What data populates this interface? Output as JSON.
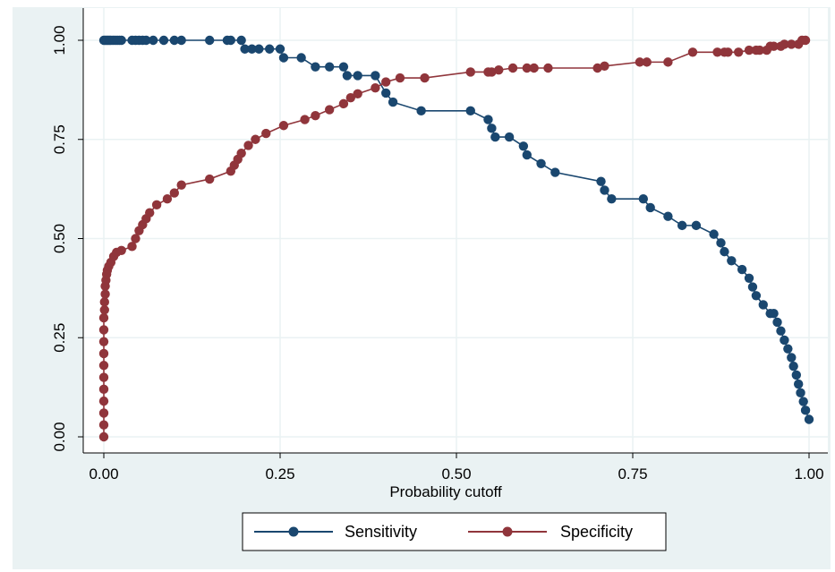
{
  "chart_data": {
    "type": "line",
    "xlabel": "Probability cutoff",
    "ylabel": "",
    "xlim": [
      0,
      1
    ],
    "ylim": [
      0,
      1
    ],
    "xticks": [
      "0.00",
      "0.25",
      "0.50",
      "0.75",
      "1.00"
    ],
    "yticks": [
      "0.00",
      "0.25",
      "0.50",
      "0.75",
      "1.00"
    ],
    "grid": true,
    "legend_position": "bottom",
    "series": [
      {
        "name": "Sensitivity",
        "color": "#1a476f",
        "x": [
          0,
          0.002,
          0.004,
          0.006,
          0.008,
          0.01,
          0.013,
          0.016,
          0.019,
          0.022,
          0.025,
          0.04,
          0.045,
          0.05,
          0.055,
          0.06,
          0.07,
          0.085,
          0.1,
          0.11,
          0.15,
          0.175,
          0.18,
          0.195,
          0.2,
          0.21,
          0.22,
          0.235,
          0.25,
          0.255,
          0.28,
          0.3,
          0.32,
          0.34,
          0.345,
          0.36,
          0.385,
          0.4,
          0.41,
          0.45,
          0.52,
          0.545,
          0.55,
          0.555,
          0.575,
          0.595,
          0.6,
          0.62,
          0.64,
          0.705,
          0.71,
          0.72,
          0.765,
          0.775,
          0.8,
          0.82,
          0.84,
          0.865,
          0.875,
          0.88,
          0.89,
          0.905,
          0.915,
          0.92,
          0.925,
          0.935,
          0.945,
          0.95,
          0.955,
          0.96,
          0.965,
          0.97,
          0.975,
          0.978,
          0.982,
          0.985,
          0.988,
          0.992,
          0.995,
          1.0
        ],
        "y": [
          1.0,
          1.0,
          1.0,
          1.0,
          1.0,
          1.0,
          1.0,
          1.0,
          1.0,
          1.0,
          1.0,
          1.0,
          1.0,
          1.0,
          1.0,
          1.0,
          1.0,
          1.0,
          1.0,
          1.0,
          1.0,
          1.0,
          1.0,
          1.0,
          0.978,
          0.978,
          0.978,
          0.978,
          0.978,
          0.956,
          0.956,
          0.933,
          0.933,
          0.933,
          0.911,
          0.911,
          0.911,
          0.867,
          0.844,
          0.822,
          0.822,
          0.8,
          0.778,
          0.756,
          0.756,
          0.733,
          0.711,
          0.689,
          0.667,
          0.644,
          0.622,
          0.6,
          0.6,
          0.578,
          0.556,
          0.533,
          0.533,
          0.511,
          0.489,
          0.467,
          0.444,
          0.422,
          0.4,
          0.378,
          0.356,
          0.333,
          0.311,
          0.311,
          0.289,
          0.267,
          0.244,
          0.222,
          0.2,
          0.178,
          0.156,
          0.133,
          0.111,
          0.089,
          0.067,
          0.044
        ]
      },
      {
        "name": "Specificity",
        "color": "#90353b",
        "x": [
          0,
          0,
          0,
          0,
          0,
          0,
          0,
          0,
          0,
          0,
          0,
          0.001,
          0.001,
          0.002,
          0.002,
          0.003,
          0.004,
          0.005,
          0.007,
          0.01,
          0.014,
          0.018,
          0.025,
          0.04,
          0.045,
          0.05,
          0.055,
          0.06,
          0.065,
          0.075,
          0.09,
          0.1,
          0.11,
          0.15,
          0.18,
          0.185,
          0.19,
          0.195,
          0.205,
          0.215,
          0.23,
          0.255,
          0.285,
          0.3,
          0.32,
          0.34,
          0.35,
          0.36,
          0.385,
          0.4,
          0.42,
          0.455,
          0.52,
          0.545,
          0.55,
          0.56,
          0.58,
          0.6,
          0.61,
          0.63,
          0.7,
          0.71,
          0.76,
          0.77,
          0.8,
          0.835,
          0.87,
          0.88,
          0.885,
          0.9,
          0.915,
          0.925,
          0.93,
          0.94,
          0.945,
          0.95,
          0.96,
          0.965,
          0.975,
          0.985,
          0.99,
          0.995
        ],
        "y": [
          0.0,
          0.03,
          0.06,
          0.09,
          0.12,
          0.15,
          0.18,
          0.21,
          0.24,
          0.27,
          0.3,
          0.32,
          0.34,
          0.36,
          0.38,
          0.395,
          0.41,
          0.42,
          0.43,
          0.44,
          0.455,
          0.465,
          0.47,
          0.48,
          0.5,
          0.52,
          0.535,
          0.55,
          0.565,
          0.585,
          0.6,
          0.615,
          0.635,
          0.65,
          0.67,
          0.685,
          0.7,
          0.715,
          0.735,
          0.75,
          0.765,
          0.785,
          0.8,
          0.81,
          0.825,
          0.84,
          0.855,
          0.865,
          0.88,
          0.895,
          0.905,
          0.905,
          0.92,
          0.92,
          0.92,
          0.925,
          0.93,
          0.93,
          0.93,
          0.93,
          0.93,
          0.935,
          0.945,
          0.945,
          0.945,
          0.97,
          0.97,
          0.97,
          0.97,
          0.97,
          0.975,
          0.975,
          0.975,
          0.975,
          0.985,
          0.985,
          0.985,
          0.99,
          0.99,
          0.99,
          1.0,
          1.0
        ]
      }
    ]
  }
}
